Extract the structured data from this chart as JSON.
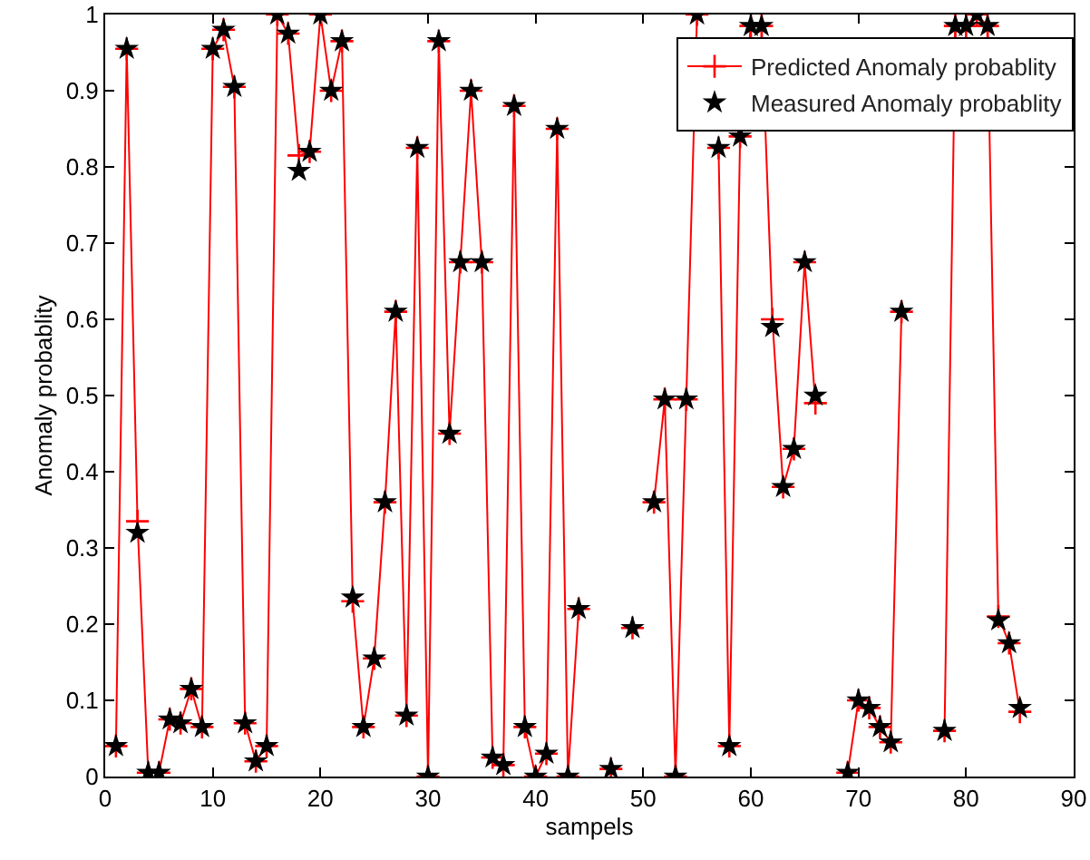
{
  "chart_data": {
    "type": "line",
    "xlabel": "sampels",
    "ylabel": "Anomaly probablity",
    "x": [
      1,
      2,
      3,
      4,
      5,
      6,
      7,
      8,
      9,
      10,
      11,
      12,
      13,
      14,
      15,
      16,
      17,
      18,
      19,
      20,
      21,
      22,
      23,
      24,
      25,
      26,
      27,
      28,
      29,
      30,
      31,
      32,
      33,
      34,
      35,
      36,
      37,
      38,
      39,
      40,
      41,
      42,
      43,
      44,
      45,
      46,
      47,
      48,
      49,
      50,
      51,
      52,
      53,
      54,
      55,
      56,
      57,
      58,
      59,
      60,
      61,
      62,
      63,
      64,
      65,
      66,
      67,
      68,
      69,
      70,
      71,
      72,
      73,
      74,
      75,
      76,
      77,
      78,
      79,
      80,
      81,
      82,
      83,
      84,
      85
    ],
    "series": [
      {
        "name": "Predicted Anomaly probablity",
        "color": "#ff0000",
        "marker": "cross",
        "line_style": "solid",
        "values": [
          0.04,
          0.955,
          0.335,
          0.005,
          0.005,
          0.075,
          0.07,
          0.115,
          0.065,
          0.955,
          0.98,
          0.905,
          0.07,
          0.02,
          0.04,
          1.0,
          0.975,
          0.815,
          0.82,
          1.0,
          0.9,
          0.965,
          0.23,
          0.065,
          0.155,
          0.36,
          0.61,
          0.08,
          0.825,
          0.0,
          0.965,
          0.45,
          0.675,
          0.9,
          0.675,
          0.025,
          0.015,
          0.88,
          0.065,
          0.0,
          0.03,
          0.85,
          0.0,
          0.22,
          null,
          null,
          0.01,
          null,
          0.195,
          null,
          0.36,
          0.495,
          0.0,
          0.495,
          1.0,
          null,
          0.825,
          0.04,
          0.84,
          0.985,
          0.985,
          0.6,
          0.38,
          0.43,
          0.675,
          0.49,
          null,
          null,
          0.005,
          0.1,
          0.09,
          0.065,
          0.045,
          0.61,
          null,
          null,
          null,
          0.06,
          0.985,
          0.985,
          1.0,
          0.985,
          0.21,
          0.175,
          0.085
        ]
      },
      {
        "type": "scatter",
        "name": "Measured Anomaly probablity",
        "color": "#000000",
        "marker": "star",
        "values": [
          0.04,
          0.955,
          0.32,
          0.005,
          0.005,
          0.075,
          0.07,
          0.115,
          0.065,
          0.955,
          0.98,
          0.905,
          0.07,
          0.02,
          0.04,
          1.0,
          0.975,
          0.795,
          0.82,
          1.0,
          0.9,
          0.965,
          0.235,
          0.065,
          0.155,
          0.36,
          0.61,
          0.08,
          0.825,
          0.0,
          0.965,
          0.45,
          0.675,
          0.9,
          0.675,
          0.025,
          0.015,
          0.88,
          0.065,
          0.0,
          0.03,
          0.85,
          0.0,
          0.22,
          null,
          null,
          0.01,
          null,
          0.195,
          null,
          0.36,
          0.495,
          0.0,
          0.495,
          1.0,
          null,
          0.825,
          0.04,
          0.84,
          0.985,
          0.985,
          0.59,
          0.38,
          0.43,
          0.675,
          0.5,
          null,
          null,
          0.005,
          0.1,
          0.09,
          0.065,
          0.045,
          0.61,
          null,
          null,
          null,
          0.06,
          0.985,
          0.985,
          1.0,
          0.985,
          0.205,
          0.175,
          0.09
        ]
      }
    ],
    "xlim": [
      0,
      90
    ],
    "xticks": [
      0,
      10,
      20,
      30,
      40,
      50,
      60,
      70,
      80,
      90
    ],
    "ylim": [
      0,
      1
    ],
    "yticks": [
      0,
      0.1,
      0.2,
      0.3,
      0.4,
      0.5,
      0.6,
      0.7,
      0.8,
      0.9,
      1
    ],
    "grid": false,
    "legend": "top right"
  }
}
